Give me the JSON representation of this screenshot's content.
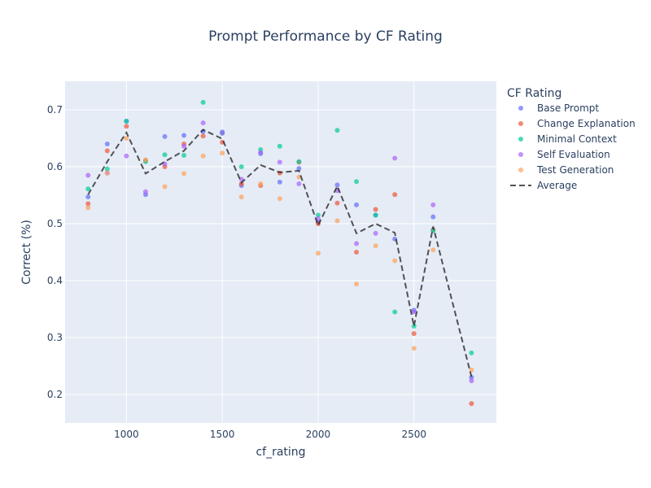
{
  "chart_data": {
    "type": "scatter",
    "title": "Prompt Performance by CF Rating",
    "xlabel": "cf_rating",
    "ylabel": "Correct (%)",
    "xlim": [
      680,
      2930
    ],
    "ylim": [
      0.15,
      0.75
    ],
    "x_ticks": [
      1000,
      1500,
      2000,
      2500
    ],
    "y_ticks": [
      0.2,
      0.3,
      0.4,
      0.5,
      0.6,
      0.7
    ],
    "x_tick_labels": [
      "1000",
      "1500",
      "2000",
      "2500"
    ],
    "y_tick_labels": [
      "0.2",
      "0.3",
      "0.4",
      "0.5",
      "0.6",
      "0.7"
    ],
    "grid": true,
    "legend_title": "CF Rating",
    "legend_position": "right",
    "x": [
      800,
      900,
      1000,
      1100,
      1200,
      1300,
      1400,
      1500,
      1600,
      1700,
      1800,
      1900,
      2000,
      2100,
      2200,
      2300,
      2400,
      2500,
      2600,
      2800
    ],
    "series": [
      {
        "name": "Base Prompt",
        "color": "#636efa",
        "marker": "circle",
        "values": [
          0.547,
          0.64,
          0.68,
          0.551,
          0.653,
          0.655,
          0.662,
          0.661,
          0.567,
          0.623,
          0.573,
          0.597,
          0.503,
          0.568,
          0.533,
          0.515,
          0.473,
          0.348,
          0.512,
          0.23
        ]
      },
      {
        "name": "Change Explanation",
        "color": "#ef553b",
        "marker": "circle",
        "values": [
          0.535,
          0.628,
          0.671,
          0.611,
          0.6,
          0.64,
          0.654,
          0.643,
          0.57,
          0.567,
          0.589,
          0.608,
          0.5,
          0.536,
          0.45,
          0.525,
          0.551,
          0.307,
          0.489,
          0.184
        ]
      },
      {
        "name": "Minimal Context",
        "color": "#00cc96",
        "marker": "circle",
        "values": [
          0.561,
          0.596,
          0.68,
          0.609,
          0.621,
          0.62,
          0.713,
          0.659,
          0.6,
          0.63,
          0.636,
          0.609,
          0.515,
          0.664,
          0.574,
          0.515,
          0.345,
          0.32,
          0.488,
          0.273
        ]
      },
      {
        "name": "Self Evaluation",
        "color": "#ab63fa",
        "marker": "circle",
        "values": [
          0.585,
          0.589,
          0.619,
          0.556,
          0.605,
          0.636,
          0.677,
          0.659,
          0.578,
          0.625,
          0.608,
          0.57,
          0.509,
          0.558,
          0.465,
          0.483,
          0.615,
          0.345,
          0.533,
          0.224
        ]
      },
      {
        "name": "Test Generation",
        "color": "#ffa15a",
        "marker": "circle",
        "values": [
          0.528,
          0.589,
          0.65,
          0.612,
          0.565,
          0.588,
          0.619,
          0.624,
          0.547,
          0.57,
          0.544,
          0.582,
          0.448,
          0.505,
          0.394,
          0.461,
          0.435,
          0.281,
          0.454,
          0.243
        ]
      },
      {
        "name": "Average",
        "color": "#2a2a2a",
        "line_style": "dash",
        "values": [
          0.551,
          0.609,
          0.66,
          0.588,
          0.609,
          0.628,
          0.665,
          0.649,
          0.572,
          0.603,
          0.59,
          0.593,
          0.497,
          0.566,
          0.483,
          0.5,
          0.484,
          0.32,
          0.495,
          0.231
        ]
      }
    ]
  }
}
